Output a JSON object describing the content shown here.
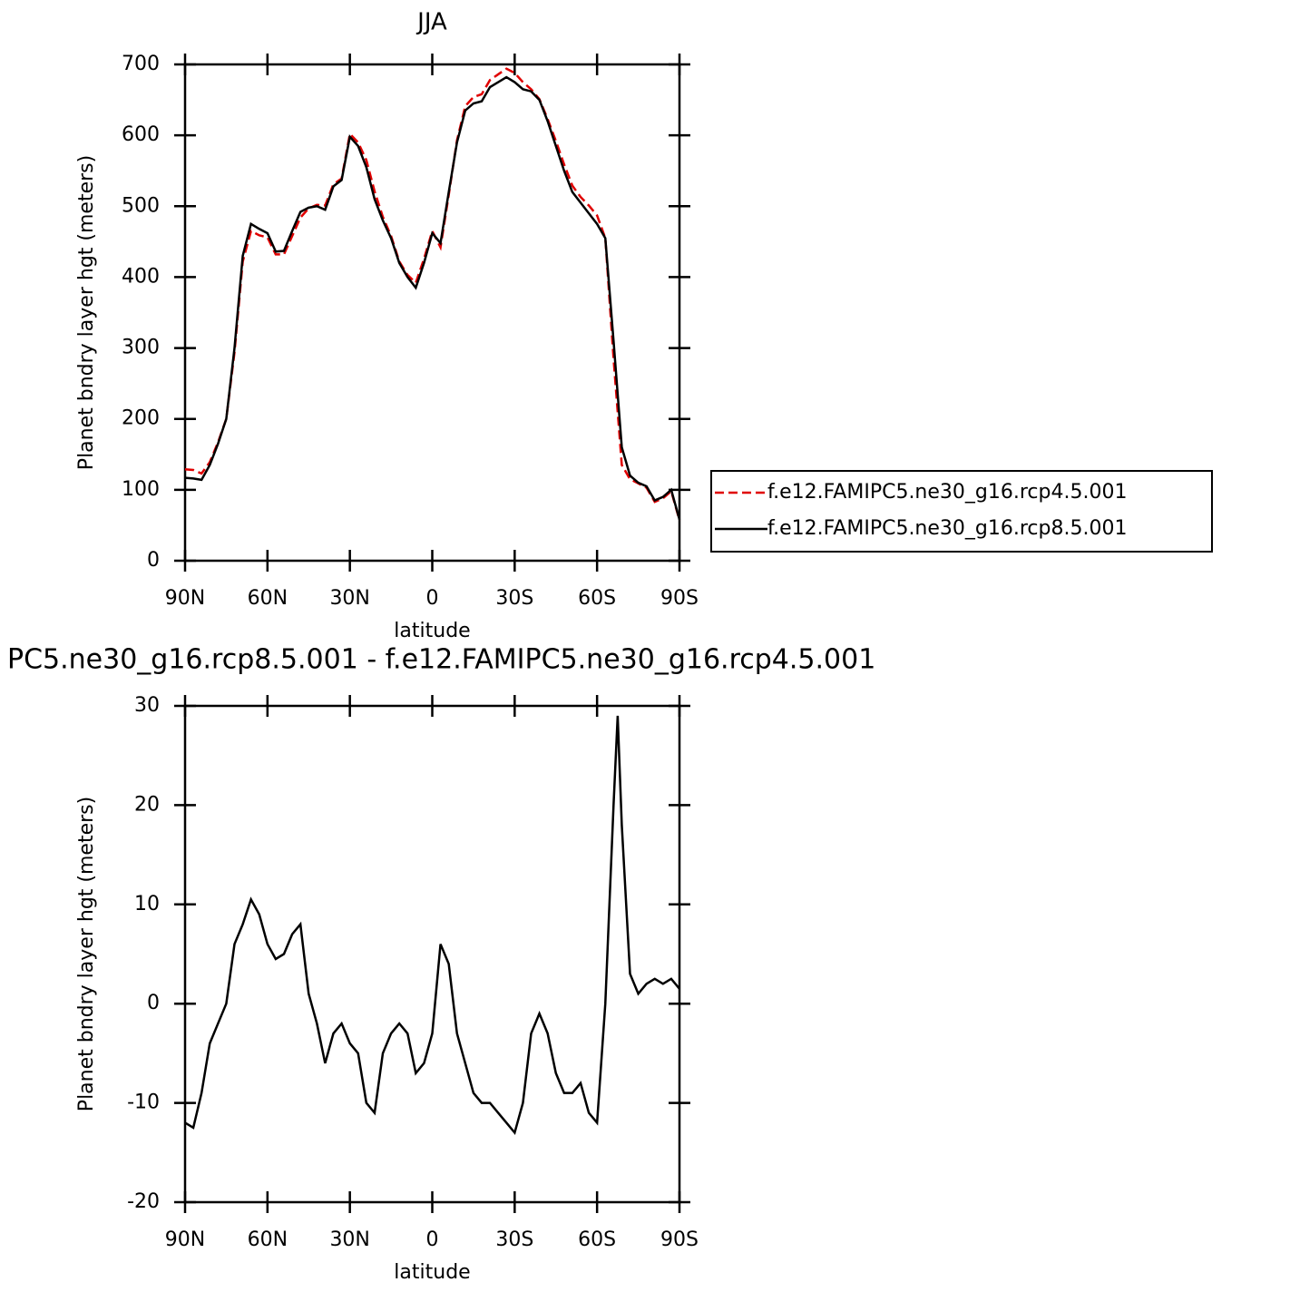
{
  "chart_data": [
    {
      "type": "line",
      "title": "JJA",
      "xlabel": "latitude",
      "ylabel": "Planet bndry layer hgt (meters)",
      "x": [
        90,
        87,
        84,
        81,
        78,
        75,
        72,
        69,
        66,
        63,
        60,
        57,
        54,
        51,
        48,
        45,
        42,
        39,
        36,
        33,
        30,
        27,
        24,
        21,
        18,
        15,
        12,
        9,
        6,
        3,
        0,
        -3,
        -6,
        -9,
        -12,
        -15,
        -18,
        -21,
        -24,
        -27,
        -30,
        -33,
        -36,
        -39,
        -42,
        -45,
        -48,
        -51,
        -54,
        -57,
        -60,
        -63,
        -66,
        -69,
        -72,
        -75,
        -78,
        -81,
        -84,
        -87,
        -90
      ],
      "xlim": [
        90,
        -90
      ],
      "xticks": [
        {
          "value": 90,
          "label": "90N"
        },
        {
          "value": 60,
          "label": "60N"
        },
        {
          "value": 30,
          "label": "30N"
        },
        0,
        {
          "value": -30,
          "label": "30S"
        },
        {
          "value": -60,
          "label": "60S"
        },
        {
          "value": -90,
          "label": "90S"
        }
      ],
      "ylim": [
        0,
        700
      ],
      "yticks": [
        0,
        100,
        200,
        300,
        400,
        500,
        600,
        700
      ],
      "legend": "right",
      "series": [
        {
          "name": "f.e12.FAMIPC5.ne30_g16.rcp4.5.001",
          "color": "#e00000",
          "dash": true,
          "values": [
            129,
            128,
            123,
            139,
            167,
            200,
            294,
            422,
            465,
            459,
            456,
            432,
            432,
            458,
            484,
            497,
            502,
            501,
            531,
            539,
            602,
            590,
            565,
            521,
            485,
            458,
            422,
            403,
            392,
            426,
            465,
            442,
            516,
            593,
            641,
            654,
            658,
            678,
            686,
            694,
            688,
            675,
            665,
            651,
            623,
            592,
            559,
            529,
            513,
            501,
            487,
            455,
            285,
            135,
            115,
            109,
            103,
            83,
            88,
            98,
            57
          ]
        },
        {
          "name": "f.e12.FAMIPC5.ne30_g16.rcp8.5.001",
          "color": "#000000",
          "dash": false,
          "values": [
            117,
            116,
            114,
            135,
            165,
            200,
            300,
            430,
            475,
            468,
            462,
            436,
            437,
            465,
            492,
            498,
            500,
            495,
            528,
            537,
            598,
            585,
            555,
            510,
            480,
            455,
            420,
            400,
            385,
            420,
            462,
            448,
            520,
            590,
            635,
            645,
            648,
            668,
            675,
            682,
            675,
            665,
            662,
            650,
            620,
            585,
            550,
            520,
            505,
            490,
            475,
            455,
            310,
            160,
            120,
            110,
            105,
            85,
            90,
            100,
            58
          ]
        }
      ]
    },
    {
      "type": "line",
      "title": "PC5.ne30_g16.rcp8.5.001 - f.e12.FAMIPC5.ne30_g16.rcp4.5.001",
      "xlabel": "latitude",
      "ylabel": "Planet bndry layer hgt (meters)",
      "x": [
        90,
        87,
        84,
        81,
        78,
        75,
        72,
        69,
        66,
        63,
        60,
        57,
        54,
        51,
        48,
        45,
        42,
        39,
        36,
        33,
        30,
        27,
        24,
        21,
        18,
        15,
        12,
        9,
        6,
        3,
        0,
        -3,
        -6,
        -9,
        -12,
        -15,
        -18,
        -21,
        -24,
        -27,
        -30,
        -33,
        -36,
        -39,
        -42,
        -45,
        -48,
        -51,
        -54,
        -57,
        -60,
        -63,
        -66,
        -67.5,
        -69,
        -72,
        -75,
        -78,
        -81,
        -84,
        -87,
        -90
      ],
      "xlim": [
        90,
        -90
      ],
      "xticks": [
        {
          "value": 90,
          "label": "90N"
        },
        {
          "value": 60,
          "label": "60N"
        },
        {
          "value": 30,
          "label": "30N"
        },
        0,
        {
          "value": -30,
          "label": "30S"
        },
        {
          "value": -60,
          "label": "60S"
        },
        {
          "value": -90,
          "label": "90S"
        }
      ],
      "ylim": [
        -20,
        30
      ],
      "yticks": [
        -20,
        -10,
        0,
        10,
        20,
        30
      ],
      "series": [
        {
          "color": "#000000",
          "values": [
            -12,
            -12.5,
            -9,
            -4,
            -2,
            0,
            6,
            8,
            10.5,
            9,
            6,
            4.5,
            5,
            7,
            8,
            1,
            -2,
            -6,
            -3,
            -2,
            -4,
            -5,
            -10,
            -11,
            -5,
            -3,
            -2,
            -3,
            -7,
            -6,
            -3,
            6,
            4,
            -3,
            -6,
            -9,
            -10,
            -10,
            -11,
            -12,
            -13,
            -10,
            -3,
            -1,
            -3,
            -7,
            -9,
            -9,
            -8,
            -11,
            -12,
            0,
            20,
            29,
            18,
            3,
            1,
            2,
            2.5,
            2,
            2.5,
            1.5
          ]
        }
      ]
    }
  ]
}
